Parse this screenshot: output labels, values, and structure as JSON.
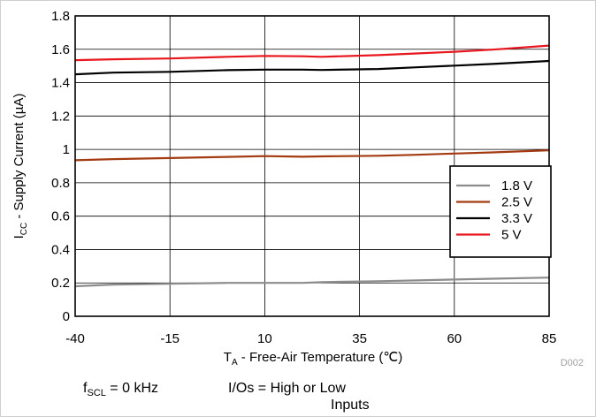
{
  "chart_data": {
    "type": "line",
    "title": "",
    "xlabel": {
      "main": "T",
      "sub": "A",
      "rest": " - Free-Air Temperature (℃)"
    },
    "ylabel": {
      "main": "I",
      "sub": "CC",
      "rest": " - Supply Current (µA)"
    },
    "xlim": [
      -40,
      85
    ],
    "ylim": [
      0,
      1.8
    ],
    "xticks": [
      -40,
      -15,
      10,
      35,
      60,
      85
    ],
    "yticks": [
      0,
      0.2,
      0.4,
      0.6,
      0.8,
      1,
      1.2,
      1.4,
      1.6,
      1.8
    ],
    "ytick_labels": [
      "0",
      "0.2",
      "0.4",
      "0.6",
      "0.8",
      "1",
      "1.2",
      "1.4",
      "1.6",
      "1.8"
    ],
    "grid": true,
    "legend_position": "right",
    "x": [
      -40,
      -30,
      -15,
      0,
      10,
      20,
      25,
      40,
      50,
      60,
      70,
      85
    ],
    "series": [
      {
        "name": "1.8 V",
        "color": "#8c8c8c",
        "values": [
          0.18,
          0.19,
          0.195,
          0.2,
          0.2,
          0.2,
          0.205,
          0.21,
          0.215,
          0.22,
          0.225,
          0.232
        ]
      },
      {
        "name": "2.5 V",
        "color": "#a33a10",
        "values": [
          0.935,
          0.942,
          0.948,
          0.955,
          0.96,
          0.956,
          0.958,
          0.962,
          0.968,
          0.975,
          0.982,
          0.995
        ]
      },
      {
        "name": "3.3 V",
        "color": "#000000",
        "values": [
          1.45,
          1.46,
          1.465,
          1.475,
          1.478,
          1.478,
          1.476,
          1.482,
          1.492,
          1.502,
          1.512,
          1.53
        ]
      },
      {
        "name": "5 V",
        "color": "#e8161d",
        "values": [
          1.535,
          1.54,
          1.545,
          1.555,
          1.56,
          1.558,
          1.555,
          1.565,
          1.575,
          1.585,
          1.598,
          1.622
        ]
      }
    ],
    "annotation": "D002"
  },
  "footnotes": {
    "fscl_main": "f",
    "fscl_sub": "SCL",
    "fscl_rest": " = 0 kHz",
    "io_line1": "I/Os = High or Low",
    "io_line2": "Inputs"
  }
}
